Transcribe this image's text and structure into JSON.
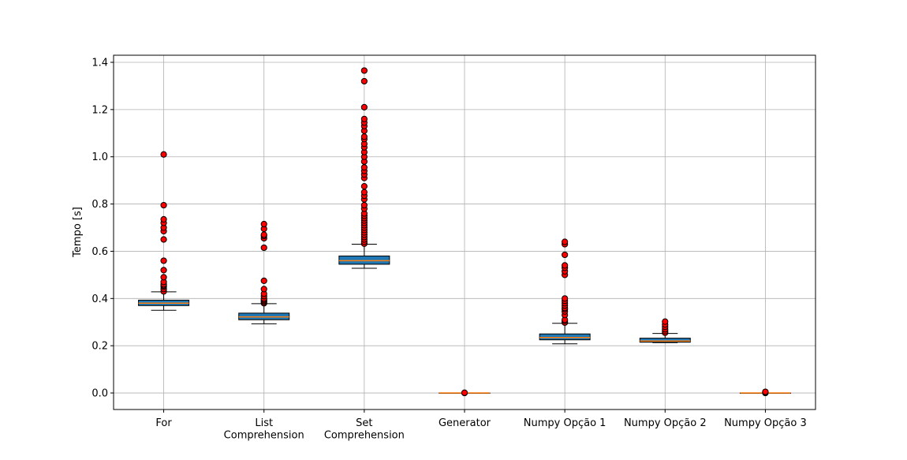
{
  "chart_data": {
    "type": "box",
    "title": "",
    "xlabel": "",
    "ylabel": "Tempo [s]",
    "ylim": [
      -0.07,
      1.43
    ],
    "yticks": [
      "0.0",
      "0.2",
      "0.4",
      "0.6",
      "0.8",
      "1.0",
      "1.2",
      "1.4"
    ],
    "ytick_values": [
      0.0,
      0.2,
      0.4,
      0.6,
      0.8,
      1.0,
      1.2,
      1.4
    ],
    "grid": true,
    "colors": {
      "box_fill": "#1f77b4",
      "median": "#ff7f0e",
      "flier_fill": "#ff0000",
      "edge": "#000000",
      "grid": "#b0b0b0"
    },
    "categories": [
      {
        "label_lines": [
          "For"
        ],
        "q1": 0.37,
        "median": 0.38,
        "q3": 0.393,
        "whisker_low": 0.35,
        "whisker_high": 0.428,
        "fliers": [
          0.43,
          0.44,
          0.45,
          0.455,
          0.46,
          0.47,
          0.49,
          0.52,
          0.56,
          0.65,
          0.685,
          0.7,
          0.72,
          0.735,
          0.795,
          1.01
        ]
      },
      {
        "label_lines": [
          "List",
          "Comprehension"
        ],
        "q1": 0.31,
        "median": 0.322,
        "q3": 0.338,
        "whisker_low": 0.293,
        "whisker_high": 0.378,
        "fliers": [
          0.38,
          0.385,
          0.39,
          0.395,
          0.4,
          0.41,
          0.42,
          0.44,
          0.475,
          0.615,
          0.655,
          0.665,
          0.67,
          0.695,
          0.715
        ]
      },
      {
        "label_lines": [
          "Set",
          "Comprehension"
        ],
        "q1": 0.545,
        "median": 0.56,
        "q3": 0.58,
        "whisker_low": 0.528,
        "whisker_high": 0.63,
        "fliers": [
          0.632,
          0.64,
          0.65,
          0.66,
          0.67,
          0.68,
          0.69,
          0.7,
          0.71,
          0.72,
          0.73,
          0.74,
          0.75,
          0.76,
          0.78,
          0.795,
          0.82,
          0.835,
          0.85,
          0.875,
          0.91,
          0.925,
          0.94,
          0.955,
          0.98,
          1.0,
          1.02,
          1.04,
          1.055,
          1.075,
          1.085,
          1.11,
          1.13,
          1.145,
          1.16,
          1.21,
          1.32,
          1.365
        ]
      },
      {
        "label_lines": [
          "Generator"
        ],
        "q1": 0.0,
        "median": 0.0,
        "q3": 0.0,
        "whisker_low": 0.0,
        "whisker_high": 0.0,
        "fliers": [
          0.0,
          0.001
        ]
      },
      {
        "label_lines": [
          "Numpy Opção 1"
        ],
        "q1": 0.225,
        "median": 0.235,
        "q3": 0.25,
        "whisker_low": 0.208,
        "whisker_high": 0.295,
        "fliers": [
          0.298,
          0.305,
          0.31,
          0.33,
          0.345,
          0.355,
          0.36,
          0.37,
          0.38,
          0.39,
          0.4,
          0.5,
          0.515,
          0.53,
          0.54,
          0.585,
          0.63,
          0.64
        ]
      },
      {
        "label_lines": [
          "Numpy Opção 2"
        ],
        "q1": 0.215,
        "median": 0.22,
        "q3": 0.232,
        "whisker_low": 0.213,
        "whisker_high": 0.252,
        "fliers": [
          0.255,
          0.262,
          0.27,
          0.28,
          0.29,
          0.302
        ]
      },
      {
        "label_lines": [
          "Numpy Opção 3"
        ],
        "q1": 0.0,
        "median": 0.0,
        "q3": 0.0,
        "whisker_low": 0.0,
        "whisker_high": 0.0,
        "fliers": [
          0.0,
          0.003,
          0.005
        ]
      }
    ]
  }
}
